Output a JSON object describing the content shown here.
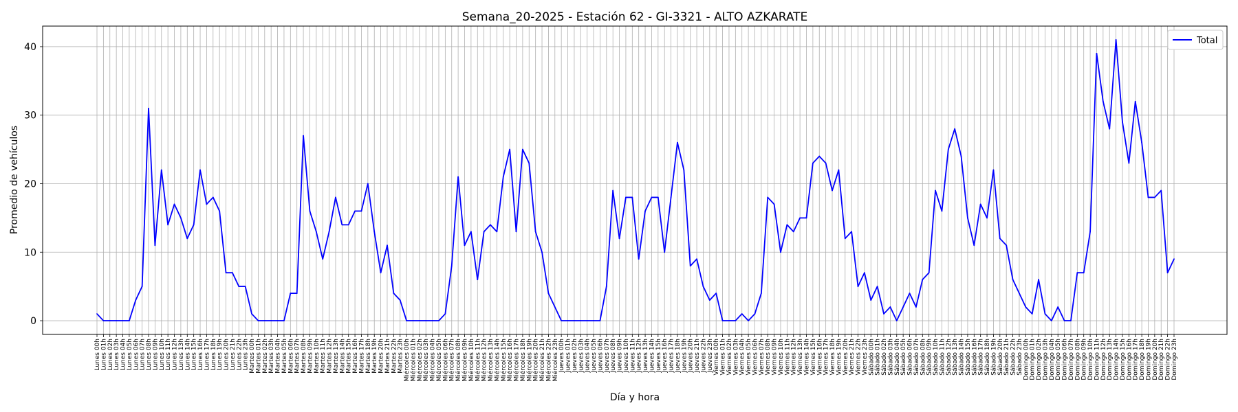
{
  "chart_data": {
    "type": "line",
    "title": "Semana_20-2025 - Estación 62 - GI-3321  - ALTO AZKARATE",
    "xlabel": "Día y hora",
    "ylabel": "Promedio de vehículos",
    "ylim": [
      -2,
      43
    ],
    "yticks": [
      0,
      10,
      20,
      30,
      40
    ],
    "grid": true,
    "legend_position": "top-right",
    "line_color": "#0000ff",
    "categories": [
      "Lunes 00h",
      "Lunes 01h",
      "Lunes 02h",
      "Lunes 03h",
      "Lunes 04h",
      "Lunes 05h",
      "Lunes 06h",
      "Lunes 07h",
      "Lunes 08h",
      "Lunes 09h",
      "Lunes 10h",
      "Lunes 11h",
      "Lunes 12h",
      "Lunes 13h",
      "Lunes 14h",
      "Lunes 15h",
      "Lunes 16h",
      "Lunes 17h",
      "Lunes 18h",
      "Lunes 19h",
      "Lunes 20h",
      "Lunes 21h",
      "Lunes 22h",
      "Lunes 23h",
      "Martes 00h",
      "Martes 01h",
      "Martes 02h",
      "Martes 03h",
      "Martes 04h",
      "Martes 05h",
      "Martes 06h",
      "Martes 07h",
      "Martes 08h",
      "Martes 09h",
      "Martes 10h",
      "Martes 11h",
      "Martes 12h",
      "Martes 13h",
      "Martes 14h",
      "Martes 15h",
      "Martes 16h",
      "Martes 17h",
      "Martes 18h",
      "Martes 19h",
      "Martes 20h",
      "Martes 21h",
      "Martes 22h",
      "Martes 23h",
      "Miércoles 00h",
      "Miércoles 01h",
      "Miércoles 02h",
      "Miércoles 03h",
      "Miércoles 04h",
      "Miércoles 05h",
      "Miércoles 06h",
      "Miércoles 07h",
      "Miércoles 08h",
      "Miércoles 09h",
      "Miércoles 10h",
      "Miércoles 11h",
      "Miércoles 12h",
      "Miércoles 13h",
      "Miércoles 14h",
      "Miércoles 15h",
      "Miércoles 16h",
      "Miércoles 17h",
      "Miércoles 18h",
      "Miércoles 19h",
      "Miércoles 20h",
      "Miércoles 21h",
      "Miércoles 22h",
      "Miércoles 23h",
      "Jueves 00h",
      "Jueves 01h",
      "Jueves 02h",
      "Jueves 03h",
      "Jueves 04h",
      "Jueves 05h",
      "Jueves 06h",
      "Jueves 07h",
      "Jueves 08h",
      "Jueves 09h",
      "Jueves 10h",
      "Jueves 11h",
      "Jueves 12h",
      "Jueves 13h",
      "Jueves 14h",
      "Jueves 15h",
      "Jueves 16h",
      "Jueves 17h",
      "Jueves 18h",
      "Jueves 19h",
      "Jueves 20h",
      "Jueves 21h",
      "Jueves 22h",
      "Jueves 23h",
      "Viernes 00h",
      "Viernes 01h",
      "Viernes 02h",
      "Viernes 03h",
      "Viernes 04h",
      "Viernes 05h",
      "Viernes 06h",
      "Viernes 07h",
      "Viernes 08h",
      "Viernes 09h",
      "Viernes 10h",
      "Viernes 11h",
      "Viernes 12h",
      "Viernes 13h",
      "Viernes 14h",
      "Viernes 15h",
      "Viernes 16h",
      "Viernes 17h",
      "Viernes 18h",
      "Viernes 19h",
      "Viernes 20h",
      "Viernes 21h",
      "Viernes 22h",
      "Viernes 23h",
      "Sábado 00h",
      "Sábado 01h",
      "Sábado 02h",
      "Sábado 03h",
      "Sábado 04h",
      "Sábado 05h",
      "Sábado 06h",
      "Sábado 07h",
      "Sábado 08h",
      "Sábado 09h",
      "Sábado 10h",
      "Sábado 11h",
      "Sábado 12h",
      "Sábado 13h",
      "Sábado 14h",
      "Sábado 15h",
      "Sábado 16h",
      "Sábado 17h",
      "Sábado 18h",
      "Sábado 19h",
      "Sábado 20h",
      "Sábado 21h",
      "Sábado 22h",
      "Sábado 23h",
      "Domingo 00h",
      "Domingo 01h",
      "Domingo 02h",
      "Domingo 03h",
      "Domingo 04h",
      "Domingo 05h",
      "Domingo 06h",
      "Domingo 07h",
      "Domingo 08h",
      "Domingo 09h",
      "Domingo 10h",
      "Domingo 11h",
      "Domingo 12h",
      "Domingo 13h",
      "Domingo 14h",
      "Domingo 15h",
      "Domingo 16h",
      "Domingo 17h",
      "Domingo 18h",
      "Domingo 19h",
      "Domingo 20h",
      "Domingo 21h",
      "Domingo 22h",
      "Domingo 23h"
    ],
    "series": [
      {
        "name": "Total",
        "values": [
          1,
          0,
          0,
          0,
          0,
          0,
          3,
          5,
          31,
          11,
          22,
          14,
          17,
          15,
          12,
          14,
          22,
          17,
          18,
          16,
          7,
          7,
          5,
          5,
          1,
          0,
          0,
          0,
          0,
          0,
          4,
          4,
          27,
          16,
          13,
          9,
          13,
          18,
          14,
          14,
          16,
          16,
          20,
          13,
          7,
          11,
          4,
          3,
          0,
          0,
          0,
          0,
          0,
          0,
          1,
          8,
          21,
          11,
          13,
          6,
          13,
          14,
          13,
          21,
          25,
          13,
          25,
          23,
          13,
          10,
          4,
          2,
          0,
          0,
          0,
          0,
          0,
          0,
          0,
          5,
          19,
          12,
          18,
          18,
          9,
          16,
          18,
          18,
          10,
          18,
          26,
          22,
          8,
          9,
          5,
          3,
          4,
          0,
          0,
          0,
          1,
          0,
          1,
          4,
          18,
          17,
          10,
          14,
          13,
          15,
          15,
          23,
          24,
          23,
          19,
          22,
          12,
          13,
          5,
          7,
          3,
          5,
          1,
          2,
          0,
          2,
          4,
          2,
          6,
          7,
          19,
          16,
          25,
          28,
          24,
          15,
          11,
          17,
          15,
          22,
          12,
          11,
          6,
          4,
          2,
          1,
          6,
          1,
          0,
          2,
          0,
          0,
          7,
          7,
          13,
          39,
          32,
          28,
          41,
          29,
          23,
          32,
          26,
          18,
          18,
          19,
          7,
          9
        ]
      }
    ]
  }
}
